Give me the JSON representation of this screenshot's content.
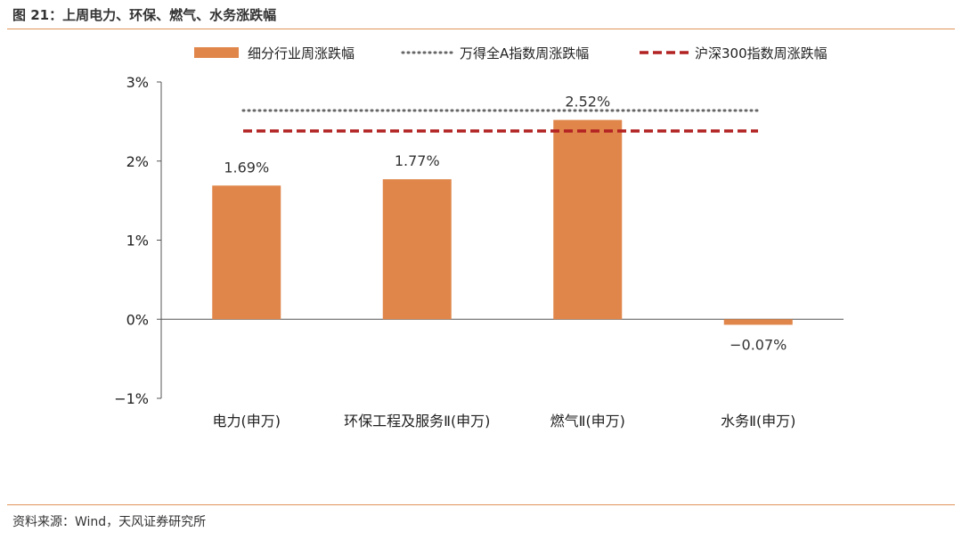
{
  "figure": {
    "title": "图 21：上周电力、环保、燃气、水务涨跌幅",
    "source": "资料来源：Wind，天风证券研究所"
  },
  "colors": {
    "bar": "#e0864a",
    "wind_line": "#666666",
    "csi300_line": "#b22222",
    "axis": "#555555",
    "rule": "#e0955a"
  },
  "chart_data": {
    "type": "bar",
    "categories": [
      "电力(申万)",
      "环保工程及服务Ⅱ(申万)",
      "燃气Ⅱ(申万)",
      "水务Ⅱ(申万)"
    ],
    "series": [
      {
        "name": "细分行业周涨跌幅",
        "values": [
          1.69,
          1.77,
          2.52,
          -0.07
        ]
      }
    ],
    "data_labels": [
      "1.69%",
      "1.77%",
      "2.52%",
      "−0.07%"
    ],
    "reference_lines": [
      {
        "name": "万得全A指数周涨跌幅",
        "style": "dotted",
        "value": 2.64
      },
      {
        "name": "沪深300指数周涨跌幅",
        "style": "dashed",
        "value": 2.38
      }
    ],
    "ylim": [
      -1,
      3
    ],
    "yticks": [
      3,
      2,
      1,
      0,
      -1
    ],
    "ytick_labels": [
      "3%",
      "2%",
      "1%",
      "0%",
      "−1%"
    ],
    "legend_position": "top",
    "grid": false
  }
}
